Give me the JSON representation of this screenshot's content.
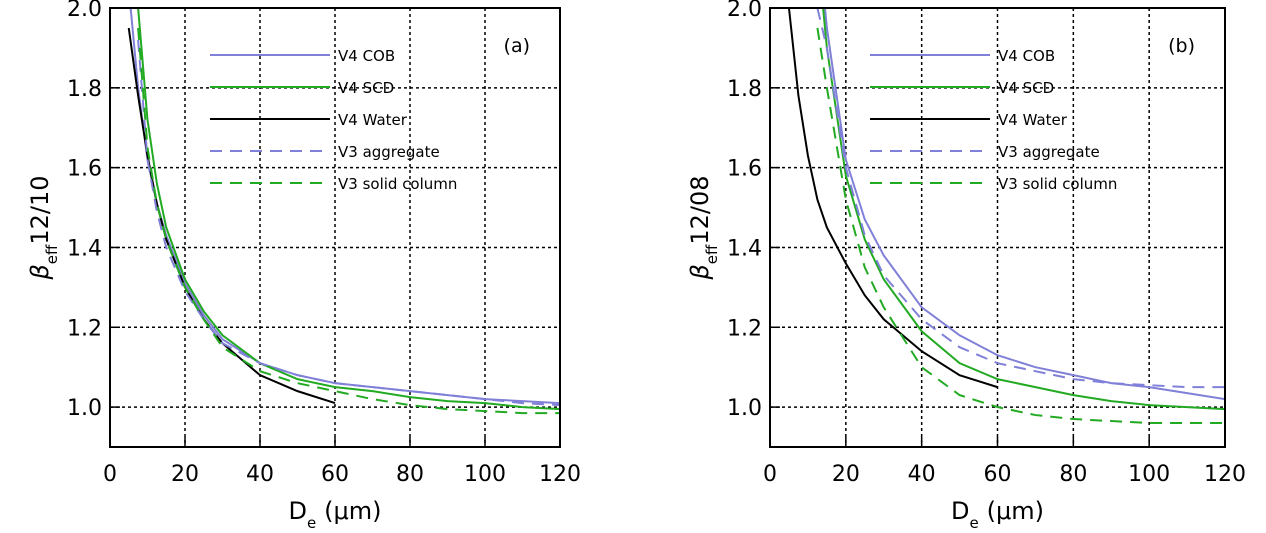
{
  "chart_data": [
    {
      "type": "line",
      "annotation": "(a)",
      "ylabel": {
        "symbol": "β",
        "sub": "eff",
        "rest": "12/10"
      },
      "xlabel": {
        "symbol": "D",
        "sub": "e",
        "rest": "(μm)"
      },
      "x": [
        5,
        7.5,
        10,
        12.5,
        15,
        20,
        25,
        30,
        40,
        50,
        60,
        70,
        80,
        90,
        100,
        110,
        120
      ],
      "xlim": [
        0,
        120
      ],
      "xticks": [
        0,
        20,
        40,
        60,
        80,
        100,
        120
      ],
      "ylim": [
        0.9,
        2.0
      ],
      "yticks": [
        {
          "value": 1.0,
          "label": "1.0"
        },
        1.2,
        1.4,
        1.6,
        1.8,
        {
          "value": 2.0,
          "label": "2.0"
        }
      ],
      "grid": true,
      "legend": "top",
      "series": [
        {
          "name": "V4 COB",
          "color": "#8080d8",
          "dash": false,
          "values": [
            2.05,
            1.8,
            1.62,
            1.51,
            1.43,
            1.31,
            1.23,
            1.17,
            1.11,
            1.08,
            1.06,
            1.05,
            1.04,
            1.03,
            1.02,
            1.015,
            1.01
          ]
        },
        {
          "name": "V4 SCD",
          "color": "#22aa22",
          "dash": false,
          "values": [
            null,
            2.0,
            1.72,
            1.56,
            1.45,
            1.32,
            1.24,
            1.18,
            1.11,
            1.07,
            1.05,
            1.04,
            1.025,
            1.015,
            1.01,
            1.0,
            0.995
          ]
        },
        {
          "name": "V4 Water",
          "color": "#000000",
          "dash": false,
          "values": [
            1.95,
            1.78,
            1.63,
            1.51,
            1.42,
            1.3,
            1.22,
            1.16,
            1.08,
            1.04,
            1.01,
            null,
            null,
            null,
            null,
            null,
            null
          ]
        },
        {
          "name": "V3 aggregate",
          "color": "#8080d8",
          "dash": true,
          "values": [
            null,
            1.92,
            1.62,
            1.49,
            1.4,
            1.29,
            1.22,
            1.16,
            1.11,
            1.08,
            1.06,
            1.05,
            1.04,
            1.03,
            1.02,
            1.01,
            1.005
          ]
        },
        {
          "name": "V3 solid column",
          "color": "#22aa22",
          "dash": true,
          "values": [
            null,
            1.95,
            1.65,
            1.51,
            1.42,
            1.3,
            1.22,
            1.15,
            1.09,
            1.06,
            1.04,
            1.02,
            1.005,
            0.995,
            0.99,
            0.985,
            0.985
          ]
        }
      ]
    },
    {
      "type": "line",
      "annotation": "(b)",
      "ylabel": {
        "symbol": "β",
        "sub": "eff",
        "rest": "12/08"
      },
      "xlabel": {
        "symbol": "D",
        "sub": "e",
        "rest": "(μm)"
      },
      "x": [
        5,
        7.5,
        10,
        12.5,
        15,
        20,
        25,
        30,
        40,
        50,
        60,
        70,
        80,
        90,
        100,
        110,
        120
      ],
      "xlim": [
        0,
        120
      ],
      "xticks": [
        0,
        20,
        40,
        60,
        80,
        100,
        120
      ],
      "ylim": [
        0.9,
        2.0
      ],
      "yticks": [
        {
          "value": 1.0,
          "label": "1.0"
        },
        1.2,
        1.4,
        1.6,
        1.8,
        {
          "value": 2.0,
          "label": "2.0"
        }
      ],
      "grid": true,
      "legend": "top",
      "series": [
        {
          "name": "V4 COB",
          "color": "#8080d8",
          "dash": false,
          "values": [
            null,
            null,
            null,
            2.2,
            1.95,
            1.62,
            1.47,
            1.38,
            1.25,
            1.18,
            1.13,
            1.1,
            1.08,
            1.06,
            1.05,
            1.035,
            1.02
          ]
        },
        {
          "name": "V4 SCD",
          "color": "#22aa22",
          "dash": false,
          "values": [
            null,
            null,
            null,
            2.15,
            1.9,
            1.58,
            1.42,
            1.32,
            1.19,
            1.11,
            1.07,
            1.05,
            1.03,
            1.015,
            1.005,
            1.0,
            0.995
          ]
        },
        {
          "name": "V4 Water",
          "color": "#000000",
          "dash": false,
          "values": [
            2.0,
            1.78,
            1.63,
            1.52,
            1.45,
            1.36,
            1.28,
            1.22,
            1.14,
            1.08,
            1.05,
            null,
            null,
            null,
            null,
            null,
            null
          ]
        },
        {
          "name": "V3 aggregate",
          "color": "#8080d8",
          "dash": true,
          "values": [
            null,
            null,
            null,
            2.0,
            1.9,
            1.6,
            1.43,
            1.33,
            1.22,
            1.15,
            1.11,
            1.09,
            1.07,
            1.06,
            1.055,
            1.05,
            1.05
          ]
        },
        {
          "name": "V3 solid column",
          "color": "#22aa22",
          "dash": true,
          "values": [
            null,
            null,
            null,
            1.95,
            1.8,
            1.52,
            1.35,
            1.25,
            1.1,
            1.03,
            1.0,
            0.98,
            0.97,
            0.965,
            0.96,
            0.96,
            0.96
          ]
        }
      ]
    }
  ]
}
